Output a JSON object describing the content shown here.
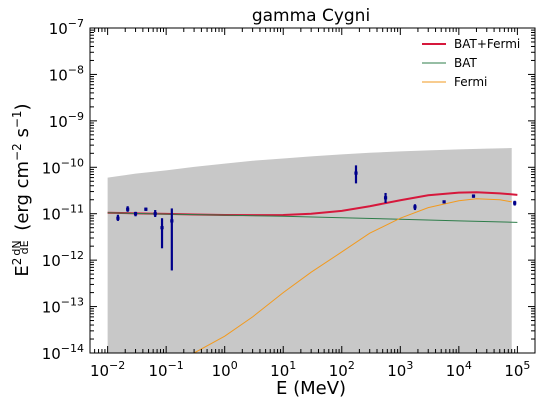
{
  "chart_data": {
    "type": "line",
    "title": "gamma Cygni",
    "xlabel": "E (MeV)",
    "ylabel": "E² dN/dE (erg cm⁻² s⁻¹)",
    "x_scale": "log",
    "y_scale": "log",
    "xlim": [
      0.005,
      200000
    ],
    "ylim": [
      1e-14,
      1e-07
    ],
    "x_ticks": [
      {
        "value": 0.01,
        "base": "10",
        "exp": "−2"
      },
      {
        "value": 0.1,
        "base": "10",
        "exp": "−1"
      },
      {
        "value": 1,
        "base": "10",
        "exp": "0"
      },
      {
        "value": 10,
        "base": "10",
        "exp": "1"
      },
      {
        "value": 100,
        "base": "10",
        "exp": "2"
      },
      {
        "value": 1000,
        "base": "10",
        "exp": "3"
      },
      {
        "value": 10000,
        "base": "10",
        "exp": "4"
      },
      {
        "value": 100000,
        "base": "10",
        "exp": "5"
      }
    ],
    "y_ticks": [
      {
        "value": 1e-14,
        "base": "10",
        "exp": "−14"
      },
      {
        "value": 1e-13,
        "base": "10",
        "exp": "−13"
      },
      {
        "value": 1e-12,
        "base": "10",
        "exp": "−12"
      },
      {
        "value": 1e-11,
        "base": "10",
        "exp": "−11"
      },
      {
        "value": 1e-10,
        "base": "10",
        "exp": "−10"
      },
      {
        "value": 1e-09,
        "base": "10",
        "exp": "−9"
      },
      {
        "value": 1e-08,
        "base": "10",
        "exp": "−8"
      },
      {
        "value": 1e-07,
        "base": "10",
        "exp": "−7"
      }
    ],
    "legend_position": "top-right",
    "legend": [
      {
        "label": "BAT+Fermi",
        "color": "#d6183c"
      },
      {
        "label": "BAT",
        "color": "#2e7d4a"
      },
      {
        "label": "Fermi",
        "color": "#f29a1f"
      }
    ],
    "upper_band": {
      "color": "#c8c8c8",
      "x": [
        0.01,
        0.03,
        0.1,
        0.3,
        1,
        3,
        10,
        30,
        100,
        300,
        1000,
        3000,
        10000,
        30000,
        80000
      ],
      "y": [
        6e-11,
        7.3e-11,
        8.6e-11,
        1.02e-10,
        1.2e-10,
        1.38e-10,
        1.55e-10,
        1.72e-10,
        1.9e-10,
        2.05e-10,
        2.2e-10,
        2.32e-10,
        2.43e-10,
        2.52e-10,
        2.6e-10
      ]
    },
    "series": [
      {
        "name": "BAT+Fermi",
        "color": "#d6183c",
        "width": 2,
        "x": [
          0.01,
          0.03,
          0.1,
          0.3,
          1,
          3,
          10,
          30,
          100,
          300,
          1000,
          3000,
          10000,
          20000,
          50000,
          100000
        ],
        "y": [
          1.05e-11,
          1.02e-11,
          9.9e-12,
          9.6e-12,
          9.4e-12,
          9.3e-12,
          9.4e-12,
          1e-11,
          1.15e-11,
          1.45e-11,
          1.95e-11,
          2.5e-11,
          2.85e-11,
          2.9e-11,
          2.75e-11,
          2.55e-11
        ]
      },
      {
        "name": "BAT",
        "color": "#2e7d4a",
        "width": 1,
        "x": [
          0.01,
          0.1,
          1,
          10,
          100,
          1000,
          10000,
          100000
        ],
        "y": [
          1.05e-11,
          9.8e-12,
          9.3e-12,
          8.8e-12,
          8.2e-12,
          7.6e-12,
          7e-12,
          6.5e-12
        ]
      },
      {
        "name": "Fermi",
        "color": "#f29a1f",
        "width": 1,
        "x": [
          0.3,
          1,
          3,
          10,
          30,
          100,
          300,
          1000,
          3000,
          10000,
          20000,
          50000,
          80000
        ],
        "y": [
          1e-14,
          2.3e-14,
          6e-14,
          2e-13,
          5.5e-13,
          1.5e-12,
          3.8e-12,
          8e-12,
          1.35e-11,
          1.9e-11,
          2.1e-11,
          2e-11,
          1.8e-11
        ]
      }
    ],
    "data_points": {
      "color": "#00008b",
      "points": [
        {
          "x": 0.015,
          "y": 8e-12,
          "ylo": 7e-12,
          "yhi": 9.5e-12
        },
        {
          "x": 0.022,
          "y": 1.25e-11,
          "ylo": 1.1e-11,
          "yhi": 1.45e-11
        },
        {
          "x": 0.03,
          "y": 1e-11,
          "ylo": 8.8e-12,
          "yhi": 1.1e-11
        },
        {
          "x": 0.045,
          "y": 1.25e-11,
          "ylo": 1.15e-11,
          "yhi": 1.35e-11
        },
        {
          "x": 0.065,
          "y": 1e-11,
          "ylo": 8.5e-12,
          "yhi": 1.2e-11
        },
        {
          "x": 0.085,
          "y": 5e-12,
          "ylo": 1.8e-12,
          "yhi": 8e-12
        },
        {
          "x": 0.125,
          "y": 7e-12,
          "ylo": 6e-13,
          "yhi": 1.3e-11
        },
        {
          "x": 175,
          "y": 7.5e-11,
          "ylo": 4.5e-11,
          "yhi": 1.1e-10
        },
        {
          "x": 560,
          "y": 2.2e-11,
          "ylo": 1.7e-11,
          "yhi": 2.8e-11
        },
        {
          "x": 1780,
          "y": 1.4e-11,
          "ylo": 1.2e-11,
          "yhi": 1.6e-11
        },
        {
          "x": 5600,
          "y": 1.8e-11,
          "ylo": 1.7e-11,
          "yhi": 1.9e-11
        },
        {
          "x": 17800,
          "y": 2.4e-11,
          "ylo": 2.2e-11,
          "yhi": 2.6e-11
        },
        {
          "x": 90000,
          "y": 1.7e-11,
          "ylo": 1.5e-11,
          "yhi": 1.9e-11
        }
      ]
    }
  }
}
